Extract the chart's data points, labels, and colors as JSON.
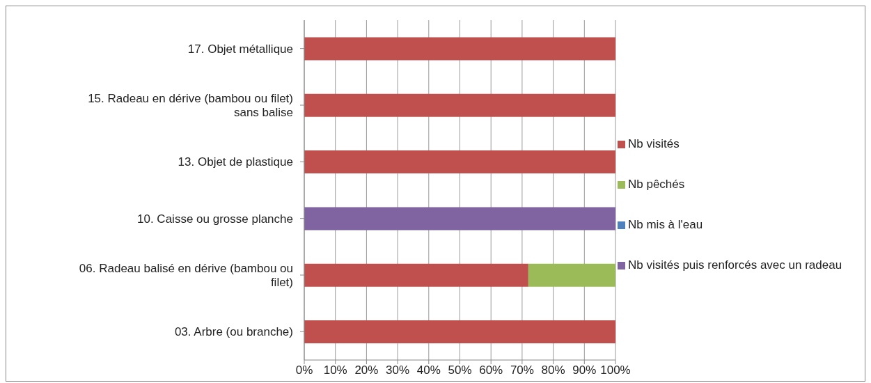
{
  "chart_data": {
    "type": "bar",
    "orientation": "horizontal",
    "stacked": true,
    "categories": [
      "17. Objet métallique",
      "15. Radeau en dérive (bambou ou filet) sans balise",
      "13. Objet de plastique",
      "10. Caisse ou grosse planche",
      "06. Radeau balisé en dérive (bambou ou filet)",
      "03. Arbre (ou branche)"
    ],
    "series": [
      {
        "name": "Nb visités",
        "color": "#c0504d",
        "values": [
          100,
          100,
          100,
          0,
          72,
          100
        ]
      },
      {
        "name": "Nb pêchés",
        "color": "#9bbb59",
        "values": [
          0,
          0,
          0,
          0,
          28,
          0
        ]
      },
      {
        "name": "Nb mis à l'eau",
        "color": "#4f81bd",
        "values": [
          0,
          0,
          0,
          0,
          0,
          0
        ]
      },
      {
        "name": "Nb visités puis renforcés avec un radeau",
        "color": "#8064a2",
        "values": [
          0,
          0,
          0,
          100,
          0,
          0
        ]
      }
    ],
    "xlim": [
      0,
      100
    ],
    "xticks": [
      {
        "value": 0,
        "label": "0%"
      },
      {
        "value": 10,
        "label": "10%"
      },
      {
        "value": 20,
        "label": "20%"
      },
      {
        "value": 30,
        "label": "30%"
      },
      {
        "value": 40,
        "label": "40%"
      },
      {
        "value": 50,
        "label": "50%"
      },
      {
        "value": 60,
        "label": "60%"
      },
      {
        "value": 70,
        "label": "70%"
      },
      {
        "value": 80,
        "label": "80%"
      },
      {
        "value": 90,
        "label": "90%"
      },
      {
        "value": 100,
        "label": "100%"
      }
    ],
    "grid": "x",
    "legend": "right"
  }
}
